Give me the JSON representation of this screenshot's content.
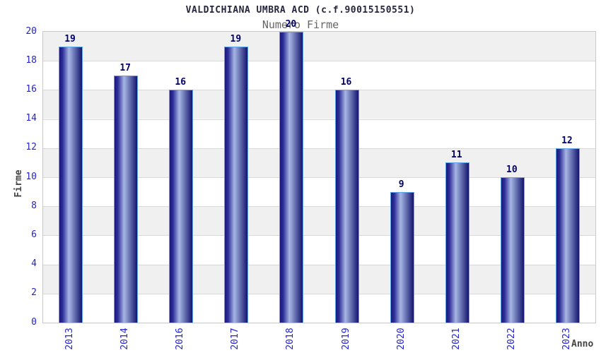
{
  "chart_data": {
    "type": "bar",
    "title": "VALDICHIANA UMBRA ACD (c.f.90015150551)",
    "subtitle": "Numero Firme",
    "categories": [
      "2013",
      "2014",
      "2016",
      "2017",
      "2018",
      "2019",
      "2020",
      "2021",
      "2022",
      "2023"
    ],
    "values": [
      19,
      17,
      16,
      19,
      20,
      16,
      9,
      11,
      10,
      12
    ],
    "xlabel": "Anno",
    "ylabel": "Firme",
    "ylim": [
      0,
      20
    ],
    "yticks": [
      0,
      2,
      4,
      6,
      8,
      10,
      12,
      14,
      16,
      18,
      20
    ],
    "grid": "horizontal-bands-alternating",
    "legend_position": "none",
    "colors": {
      "bar_dark": "#17177c",
      "bar_mid_light": "#a8b6e4",
      "bar_dark_right": "#14146e",
      "bar_border": "#60a5ea",
      "value_label": "#00006b",
      "tick_label": "#2424cc",
      "band_gray": "#f0f0f0",
      "band_white": "#ffffff",
      "gridline": "#d9d9d9",
      "plot_border": "#c9c9c9",
      "title": "#26263e",
      "subtitle": "#666666",
      "axis_label": "#444444",
      "background": "#ffffff"
    }
  }
}
